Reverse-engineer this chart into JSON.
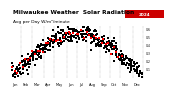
{
  "title": "Milwaukee Weather  Solar Radiation",
  "subtitle": "Avg per Day W/m²/minute",
  "title_fontsize": 4.2,
  "subtitle_fontsize": 3.2,
  "background_color": "#ffffff",
  "dot_color_current": "#ff0000",
  "dot_color_historical": "#000000",
  "legend_label_current": "2024",
  "legend_box_color": "#cc0000",
  "ylim": [
    0,
    0.65
  ],
  "xlim": [
    0,
    53
  ],
  "grid_color": "#999999",
  "week_boundaries": [
    4,
    8,
    13,
    17,
    22,
    26,
    30,
    35,
    39,
    43,
    48,
    52
  ],
  "month_labels": [
    "Jan",
    "Feb",
    "Mar",
    "Apr",
    "May",
    "Jun",
    "Jul",
    "Aug",
    "Sep",
    "Oct",
    "Nov",
    "Dec"
  ],
  "month_label_fontsize": 2.5,
  "dot_size": 1.5,
  "num_years_historical": 8
}
